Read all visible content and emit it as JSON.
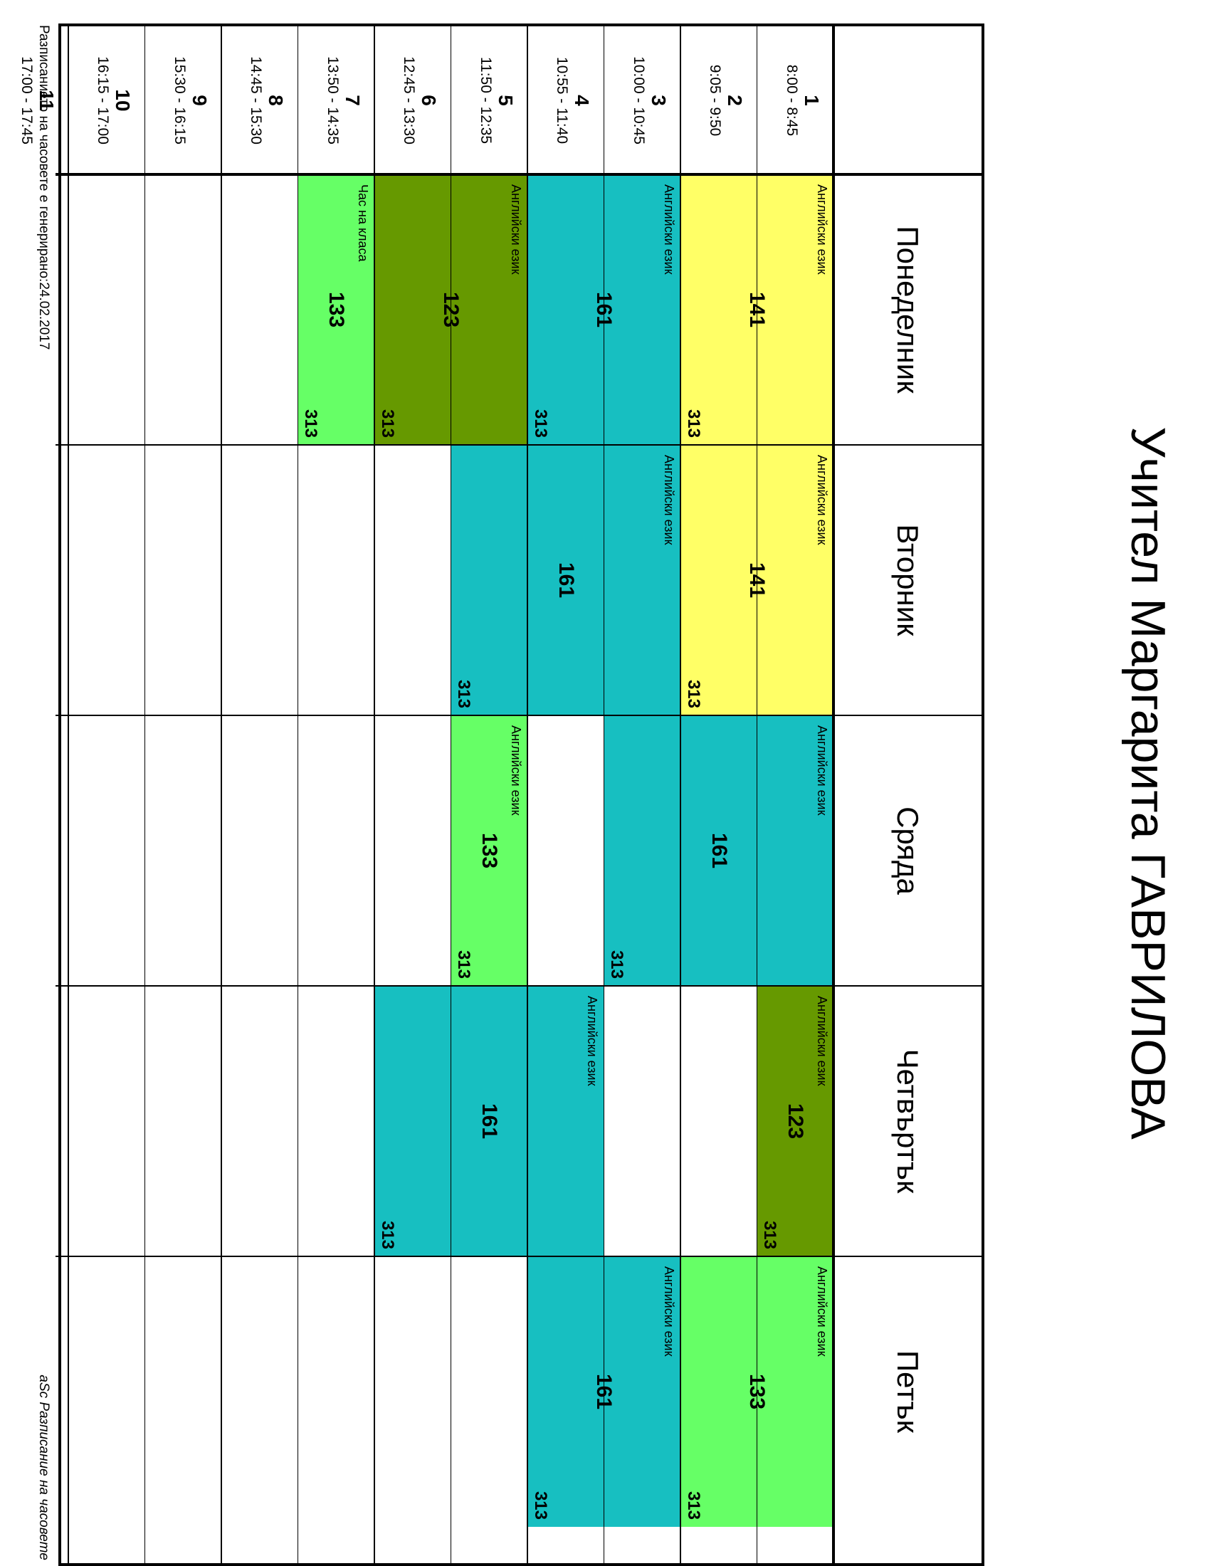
{
  "title": "Учител Маргарита ГАВРИЛОВА",
  "days": [
    "Понеделник",
    "Вторник",
    "Сряда",
    "Четвъртък",
    "Петък"
  ],
  "periods": [
    {
      "num": "1",
      "time": "8:00 - 8:45"
    },
    {
      "num": "2",
      "time": "9:05 - 9:50"
    },
    {
      "num": "3",
      "time": "10:00 - 10:45"
    },
    {
      "num": "4",
      "time": "10:55 - 11:40"
    },
    {
      "num": "5",
      "time": "11:50 - 12:35"
    },
    {
      "num": "6",
      "time": "12:45 - 13:30"
    },
    {
      "num": "7",
      "time": "13:50 - 14:35"
    },
    {
      "num": "8",
      "time": "14:45 - 15:30"
    },
    {
      "num": "9",
      "time": "15:30 - 16:15"
    },
    {
      "num": "10",
      "time": "16:15 - 17:00"
    },
    {
      "num": "11",
      "time": "17:00 - 17:45"
    }
  ],
  "lessons": [
    {
      "day": 0,
      "start": 1,
      "end": 2,
      "subject": "Английски език",
      "class": "141",
      "room": "313",
      "color": "#ffff66"
    },
    {
      "day": 0,
      "start": 3,
      "end": 4,
      "subject": "Английски език",
      "class": "161",
      "room": "313",
      "color": "#17bfc1"
    },
    {
      "day": 0,
      "start": 5,
      "end": 6,
      "subject": "Английски език",
      "class": "123",
      "room": "313",
      "color": "#669900"
    },
    {
      "day": 0,
      "start": 7,
      "end": 7,
      "subject": "Час на класа",
      "class": "133",
      "room": "313",
      "color": "#66ff66"
    },
    {
      "day": 1,
      "start": 1,
      "end": 2,
      "subject": "Английски език",
      "class": "141",
      "room": "313",
      "color": "#ffff66"
    },
    {
      "day": 1,
      "start": 3,
      "end": 5,
      "subject": "Английски език",
      "class": "161",
      "room": "313",
      "color": "#17bfc1"
    },
    {
      "day": 2,
      "start": 1,
      "end": 3,
      "subject": "Английски език",
      "class": "161",
      "room": "313",
      "color": "#17bfc1"
    },
    {
      "day": 2,
      "start": 5,
      "end": 5,
      "subject": "Английски език",
      "class": "133",
      "room": "313",
      "color": "#66ff66"
    },
    {
      "day": 3,
      "start": 1,
      "end": 1,
      "subject": "Английски език",
      "class": "123",
      "room": "313",
      "color": "#669900"
    },
    {
      "day": 3,
      "start": 4,
      "end": 6,
      "subject": "Английски език",
      "class": "161",
      "room": "313",
      "color": "#17bfc1"
    },
    {
      "day": 4,
      "start": 1,
      "end": 2,
      "subject": "Английски език",
      "class": "133",
      "room": "313",
      "color": "#66ff66"
    },
    {
      "day": 4,
      "start": 3,
      "end": 4,
      "subject": "Английски език",
      "class": "161",
      "room": "313",
      "color": "#17bfc1"
    }
  ],
  "footer": {
    "generated": "Разписанието на часовете е генерирано:24.02.2017",
    "software": "aSc Разписание на часовете"
  }
}
